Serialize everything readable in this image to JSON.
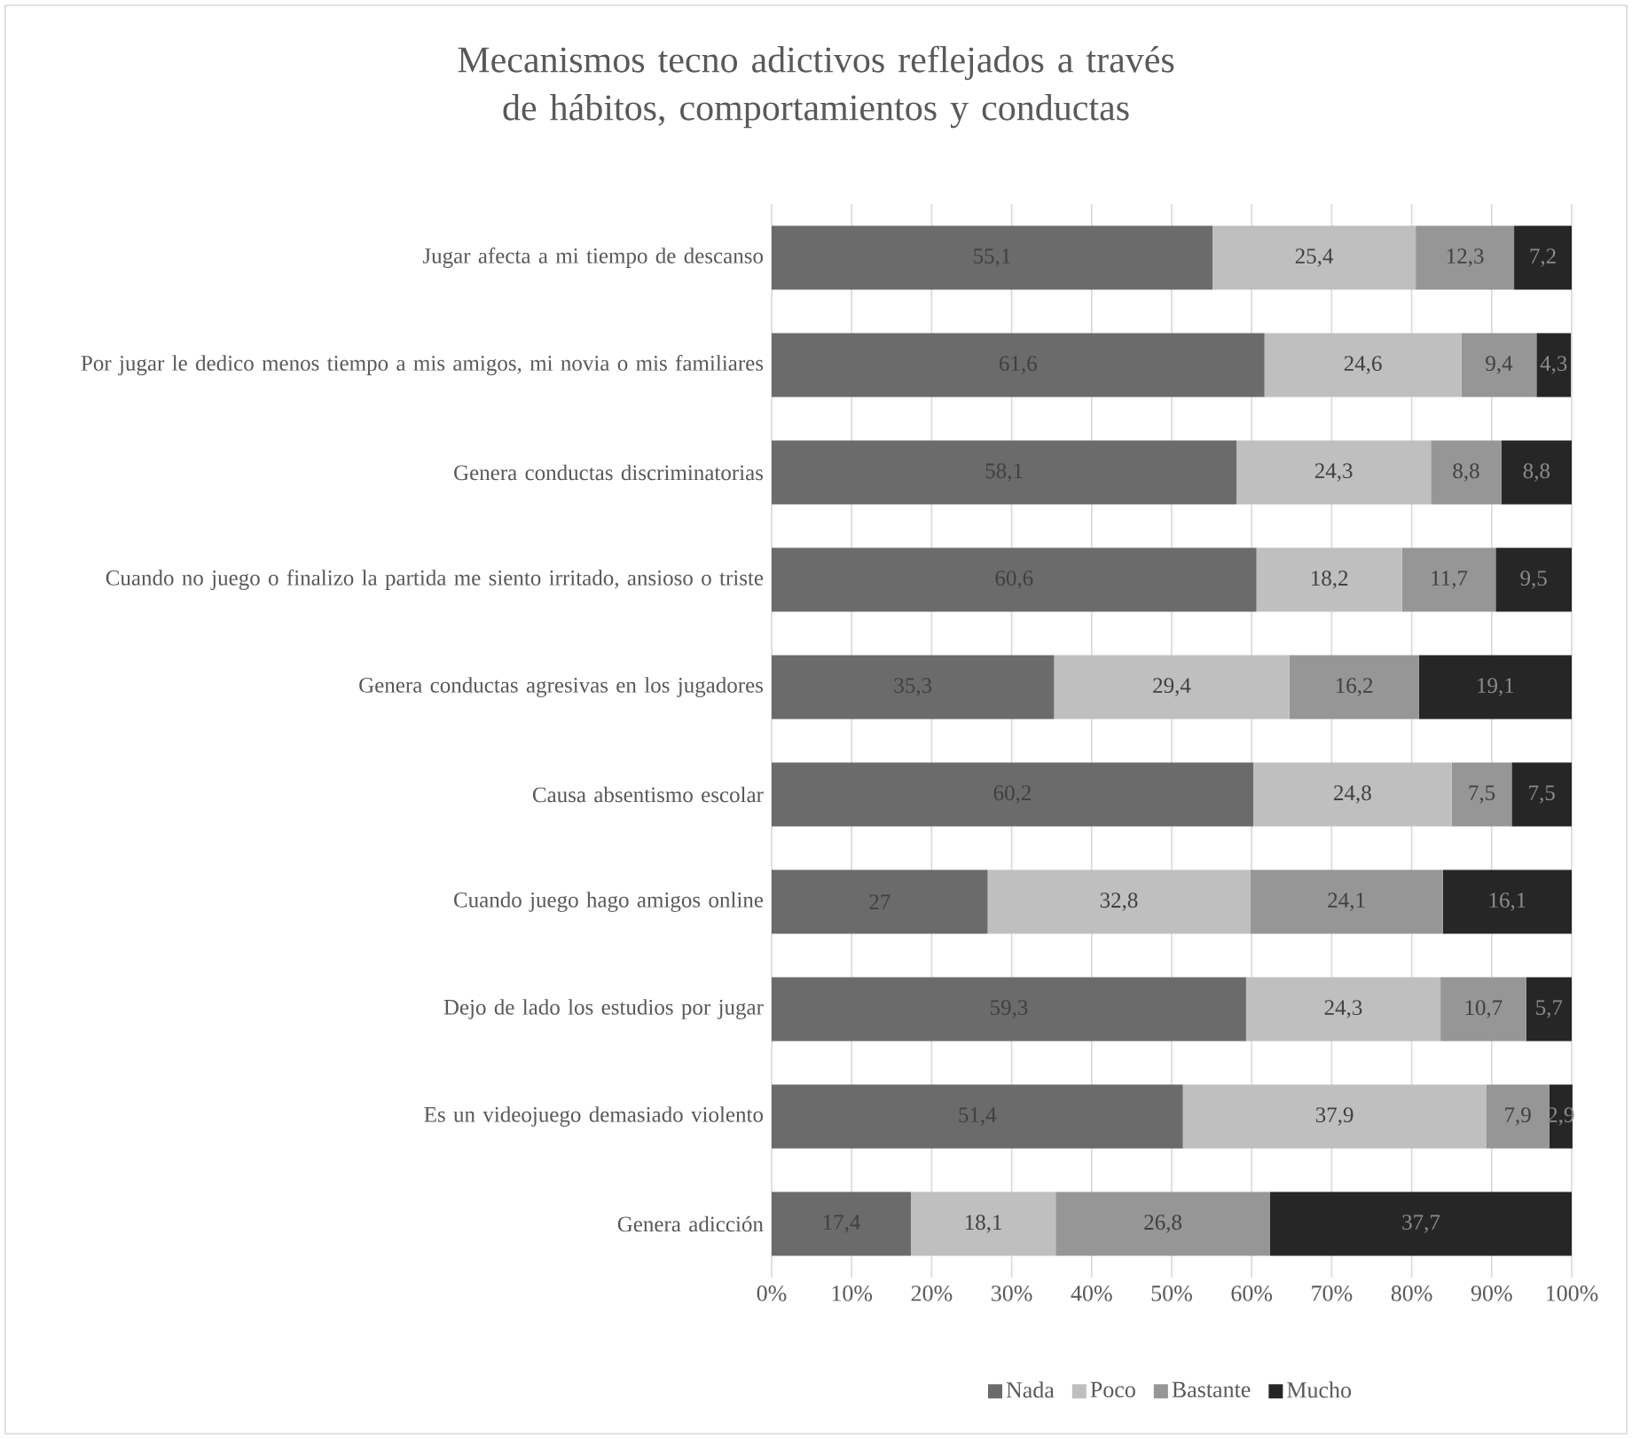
{
  "chart_data": {
    "type": "bar",
    "orientation": "horizontal",
    "stacked": true,
    "title": "Mecanismos tecno adictivos reflejados a través de hábitos, comportamientos y conductas",
    "categories": [
      "Jugar afecta a mi tiempo de descanso",
      "Por jugar le dedico menos tiempo a mis amigos, mi novia o mis familiares",
      "Genera conductas discriminatorias",
      "Cuando no juego o finalizo la partida me siento irritado, ansioso o triste",
      "Genera conductas agresivas en los jugadores",
      "Causa absentismo escolar",
      "Cuando juego hago amigos online",
      "Dejo de lado los estudios por jugar",
      "Es un videojuego demasiado violento",
      "Genera adicción"
    ],
    "series": [
      {
        "name": "Nada",
        "color": "#6b6b6b",
        "values": [
          55.1,
          61.6,
          58.1,
          60.6,
          35.3,
          60.2,
          27,
          59.3,
          51.4,
          17.4
        ],
        "value_labels": [
          "55,1",
          "61,6",
          "58,1",
          "60,6",
          "35,3",
          "60,2",
          "27",
          "59,3",
          "51,4",
          "17,4"
        ]
      },
      {
        "name": "Poco",
        "color": "#bfbfbf",
        "values": [
          25.4,
          24.6,
          24.3,
          18.2,
          29.4,
          24.8,
          32.8,
          24.3,
          37.9,
          18.1
        ],
        "value_labels": [
          "25,4",
          "24,6",
          "24,3",
          "18,2",
          "29,4",
          "24,8",
          "32,8",
          "24,3",
          "37,9",
          "18,1"
        ]
      },
      {
        "name": "Bastante",
        "color": "#969696",
        "values": [
          12.3,
          9.4,
          8.8,
          11.7,
          16.2,
          7.5,
          24.1,
          10.7,
          7.9,
          26.8
        ],
        "value_labels": [
          "12,3",
          "9,4",
          "8,8",
          "11,7",
          "16,2",
          "7,5",
          "24,1",
          "10,7",
          "7,9",
          "26,8"
        ]
      },
      {
        "name": "Mucho",
        "color": "#262626",
        "values": [
          7.2,
          4.3,
          8.8,
          9.5,
          19.1,
          7.5,
          16.1,
          5.7,
          2.9,
          37.7
        ],
        "value_labels": [
          "7,2",
          "4,3",
          "8,8",
          "9,5",
          "19,1",
          "7,5",
          "16,1",
          "5,7",
          "2,9",
          "37,7"
        ]
      }
    ],
    "xlim": [
      0,
      100
    ],
    "xticks": [
      {
        "value": 0,
        "label": "0%"
      },
      {
        "value": 10,
        "label": "10%"
      },
      {
        "value": 20,
        "label": "20%"
      },
      {
        "value": 30,
        "label": "30%"
      },
      {
        "value": 40,
        "label": "40%"
      },
      {
        "value": 50,
        "label": "50%"
      },
      {
        "value": 60,
        "label": "60%"
      },
      {
        "value": 70,
        "label": "70%"
      },
      {
        "value": 80,
        "label": "80%"
      },
      {
        "value": 90,
        "label": "90%"
      },
      {
        "value": 100,
        "label": "100%"
      }
    ],
    "grid": "x",
    "legend": "bottom"
  }
}
